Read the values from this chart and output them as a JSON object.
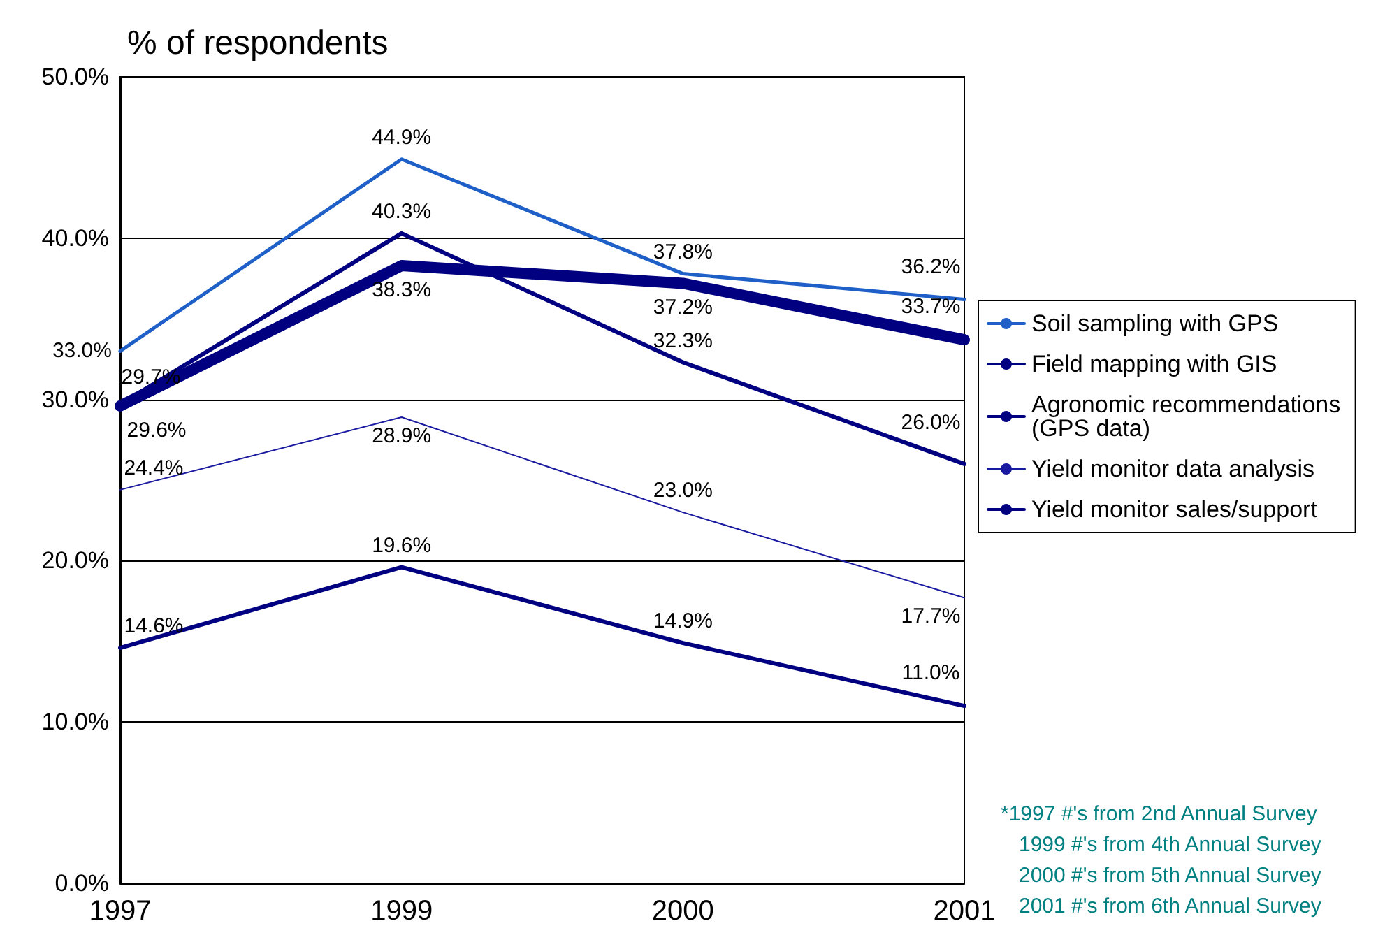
{
  "chart_data": {
    "type": "line",
    "title": "% of respondents",
    "categories": [
      "1997",
      "1999",
      "2000",
      "2001"
    ],
    "series": [
      {
        "name": "Soil sampling with GPS",
        "color": "#1f5fc8",
        "values": [
          33.0,
          44.9,
          37.8,
          36.2
        ],
        "value_labels": [
          "33.0%",
          "44.9%",
          "37.8%",
          "36.2%"
        ]
      },
      {
        "name": "Field mapping with GIS",
        "color": "#000080",
        "values": [
          29.6,
          38.3,
          37.2,
          33.7
        ],
        "value_labels": [
          "29.6%",
          "38.3%",
          "37.2%",
          "33.7%"
        ]
      },
      {
        "name": "Agronomic recommendations (GPS data)",
        "color": "#000080",
        "values": [
          29.7,
          40.3,
          32.3,
          26.0
        ],
        "value_labels": [
          "29.7%",
          "40.3%",
          "32.3%",
          "26.0%"
        ]
      },
      {
        "name": "Yield monitor data analysis",
        "color": "#1a1aa0",
        "values": [
          24.4,
          28.9,
          23.0,
          17.7
        ],
        "value_labels": [
          "24.4%",
          "28.9%",
          "23.0%",
          "17.7%"
        ]
      },
      {
        "name": "Yield monitor sales/support",
        "color": "#000080",
        "values": [
          14.6,
          19.6,
          14.9,
          11.0
        ],
        "value_labels": [
          "14.6%",
          "19.6%",
          "14.9%",
          "11.0%"
        ]
      }
    ],
    "ylim": [
      0,
      50
    ],
    "yticks": [
      {
        "value": 0,
        "label": "0.0%"
      },
      {
        "value": 10,
        "label": "10.0%"
      },
      {
        "value": 20,
        "label": "20.0%"
      },
      {
        "value": 30,
        "label": "30.0%"
      },
      {
        "value": 40,
        "label": "40.0%"
      },
      {
        "value": 50,
        "label": "50.0%"
      }
    ],
    "grid": "y",
    "legend": "right",
    "line_style": "solid",
    "annotations": [
      "*1997 #'s from 2nd Annual Survey",
      "1999 #'s from 4th Annual Survey",
      "2000 #'s from 5th Annual Survey",
      "2001 #'s from 6th Annual Survey"
    ]
  }
}
